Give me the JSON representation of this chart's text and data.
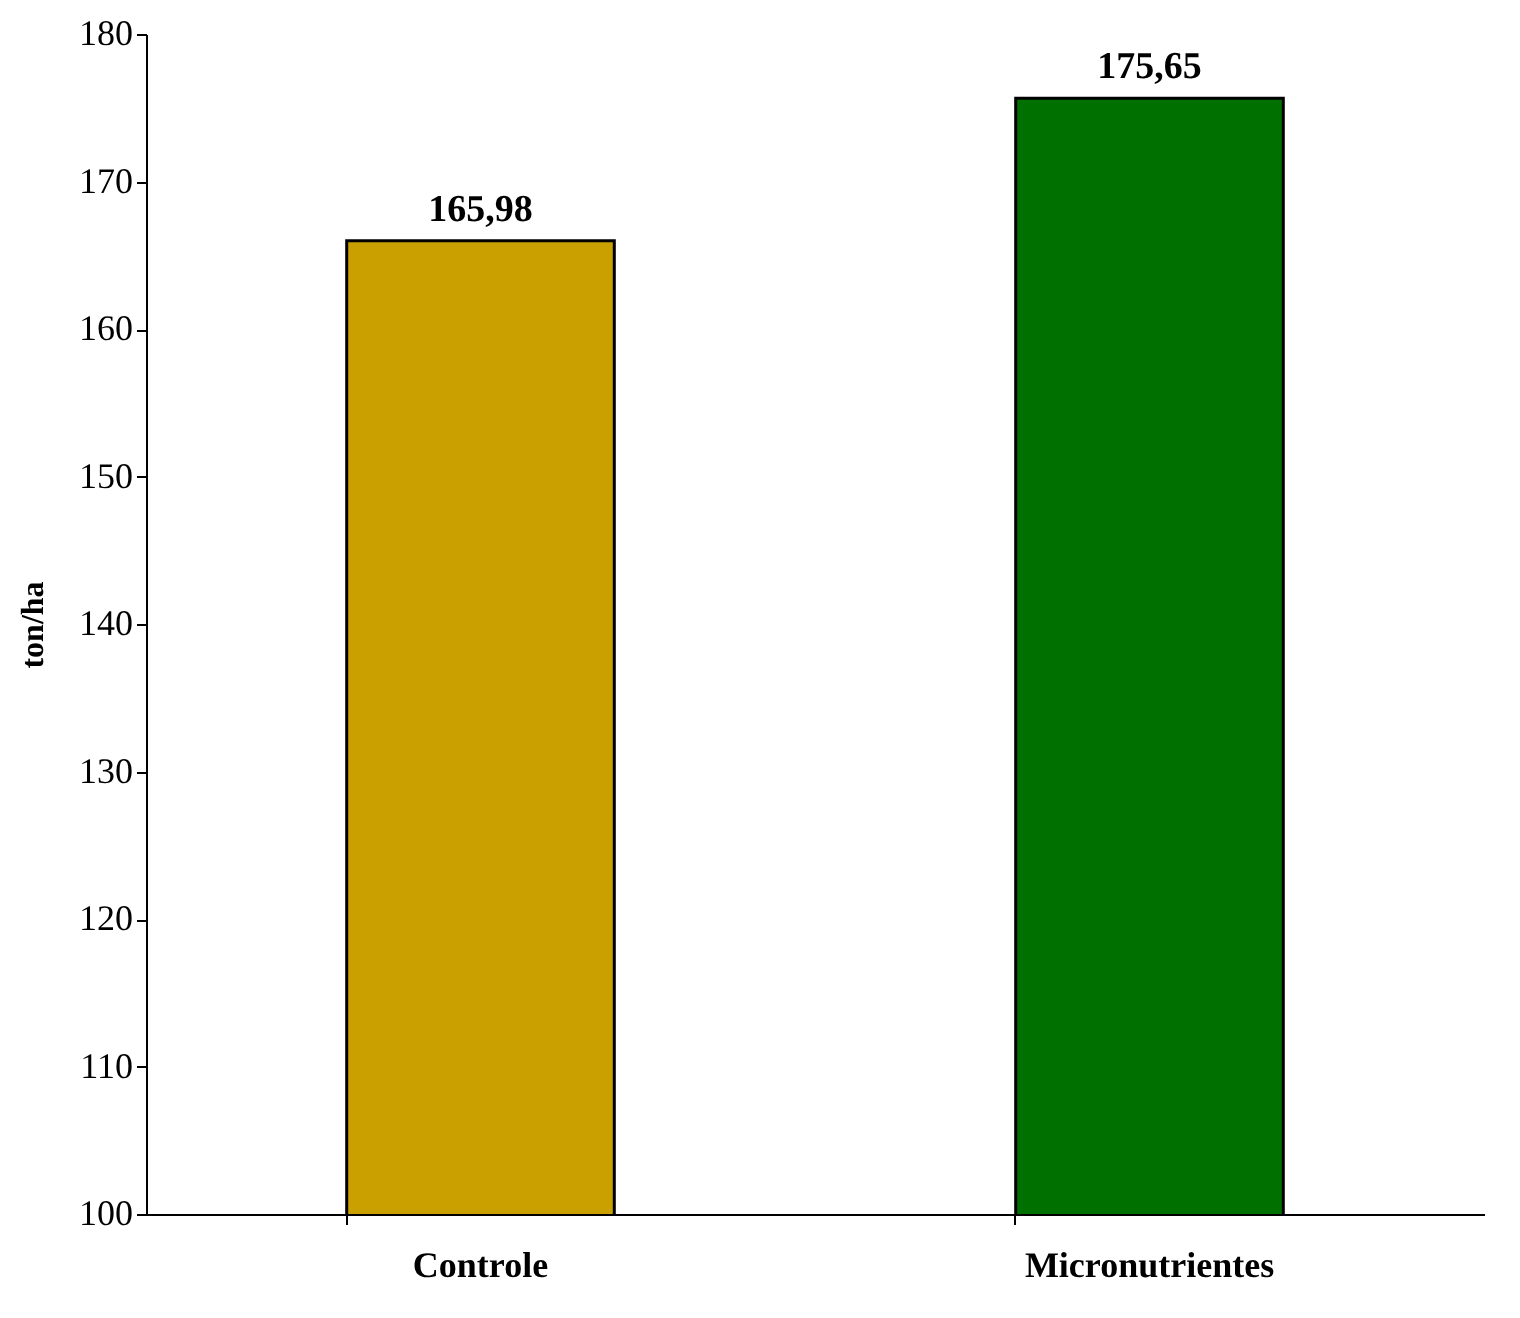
{
  "chart_data": {
    "type": "bar",
    "ylabel": "ton/ha",
    "categories": [
      "Controle",
      "Micronutrientes"
    ],
    "values": [
      165.98,
      175.65
    ],
    "colors": [
      "#c9a000",
      "#007000"
    ],
    "value_labels": [
      "165,98",
      "175,65"
    ],
    "ylim": [
      100,
      180
    ],
    "yticks": [
      100,
      110,
      120,
      130,
      140,
      150,
      160,
      170,
      180
    ],
    "grid": false
  }
}
